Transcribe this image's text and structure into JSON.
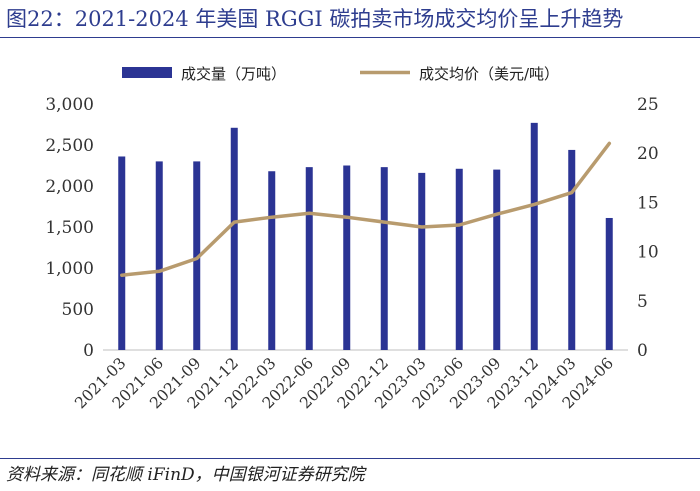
{
  "title": "图22：2021-2024 年美国 RGGI 碳拍卖市场成交均价呈上升趋势",
  "source": "资料来源：同花顺 iFinD，中国银河证券研究院",
  "colors": {
    "bar": "#2b3494",
    "line": "#b89b6e",
    "rule": "#2e3d8f"
  },
  "chart_data": {
    "type": "bar",
    "categories": [
      "2021-03",
      "2021-06",
      "2021-09",
      "2021-12",
      "2022-03",
      "2022-06",
      "2022-09",
      "2022-12",
      "2023-03",
      "2023-06",
      "2023-09",
      "2023-12",
      "2024-03",
      "2024-06"
    ],
    "series": [
      {
        "name": "成交量（万吨）",
        "type": "bar",
        "axis": "left",
        "values": [
          2360,
          2300,
          2300,
          2710,
          2180,
          2230,
          2250,
          2230,
          2160,
          2210,
          2200,
          2770,
          2440,
          1610
        ]
      },
      {
        "name": "成交均价（美元/吨）",
        "type": "line",
        "axis": "right",
        "values": [
          7.6,
          8.0,
          9.3,
          13.0,
          13.5,
          13.9,
          13.5,
          13.0,
          12.5,
          12.7,
          13.8,
          14.8,
          16.0,
          21.0
        ]
      }
    ],
    "ylim_left": [
      0,
      3000
    ],
    "yticks_left": [
      "0",
      "500",
      "1,000",
      "1,500",
      "2,000",
      "2,500",
      "3,000"
    ],
    "ylim_right": [
      0,
      25
    ],
    "yticks_right": [
      "0",
      "5",
      "10",
      "15",
      "20",
      "25"
    ],
    "grid": false,
    "legend_position": "top"
  }
}
